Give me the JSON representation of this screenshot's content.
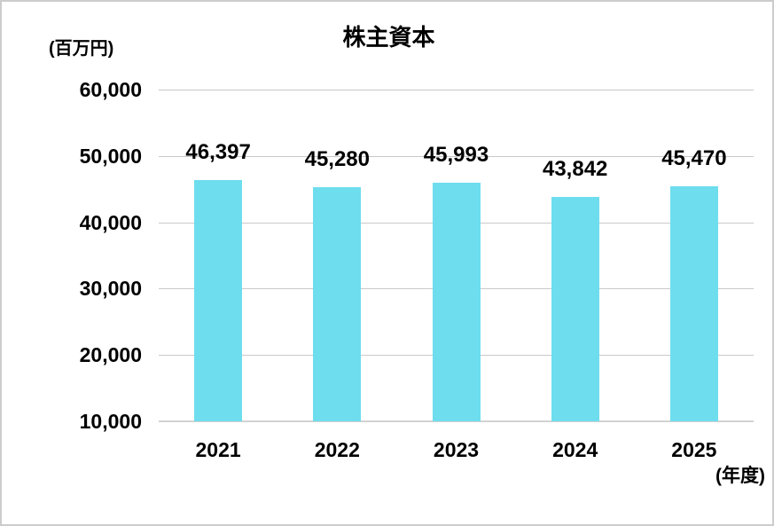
{
  "chart_data": {
    "type": "bar",
    "title": "株主資本",
    "unit_label": "(百万円)",
    "x_axis_unit_label": "(年度)",
    "categories": [
      "2021",
      "2022",
      "2023",
      "2024",
      "2025"
    ],
    "values": [
      46397,
      45280,
      45993,
      43842,
      45470
    ],
    "value_labels": [
      "46,397",
      "45,280",
      "45,993",
      "43,842",
      "45,470"
    ],
    "ylim": [
      10000,
      60000
    ],
    "ytick_step": 10000,
    "ytick_labels": [
      "10,000",
      "20,000",
      "30,000",
      "40,000",
      "50,000",
      "60,000"
    ],
    "xlabel": "",
    "ylabel": "",
    "legend": "none",
    "grid": true,
    "colors": {
      "bar_fill": "#6EDDEE",
      "gridline": "#c9c9c9",
      "axis_line": "#d2d2d2",
      "text": "#000000",
      "background": "#ffffff",
      "frame_border": "#cccccc"
    }
  }
}
